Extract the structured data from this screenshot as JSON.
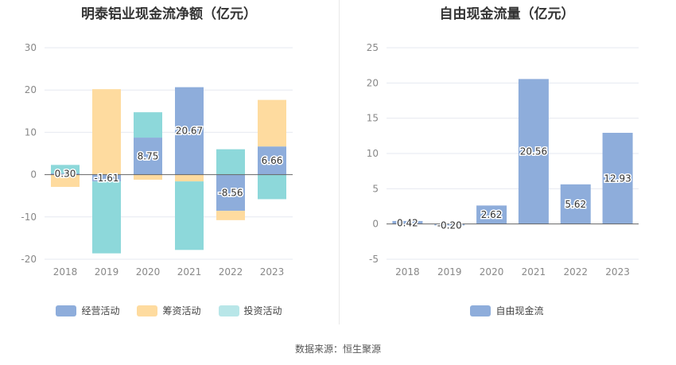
{
  "chart_data": [
    {
      "type": "bar",
      "stacked": true,
      "title": "明泰铝业现金流净额（亿元）",
      "categories": [
        "2018",
        "2019",
        "2020",
        "2021",
        "2022",
        "2023"
      ],
      "ylim": [
        -20,
        30
      ],
      "yticks": [
        "30",
        "20",
        "10",
        "0",
        "-10",
        "-20"
      ],
      "grid": true,
      "legend_position": "bottom",
      "series": [
        {
          "name": "经营活动",
          "color": "#8eaddb",
          "values": [
            0.3,
            -1.61,
            8.75,
            20.67,
            -8.56,
            6.66
          ],
          "labels": [
            "0.30",
            "-1.61",
            "8.75",
            "20.67",
            "-8.56",
            "6.66"
          ]
        },
        {
          "name": "筹资活动",
          "color": "#fedb9f",
          "values": [
            -2.9,
            20.2,
            -1.2,
            -1.6,
            -2.2,
            11.0
          ]
        },
        {
          "name": "投资活动",
          "color": "#8dd8da",
          "values": [
            2.0,
            -17.0,
            6.0,
            -16.2,
            6.0,
            -5.8
          ]
        }
      ]
    },
    {
      "type": "bar",
      "title": "自由现金流量（亿元）",
      "categories": [
        "2018",
        "2019",
        "2020",
        "2021",
        "2022",
        "2023"
      ],
      "ylim": [
        -5,
        25
      ],
      "yticks": [
        "25",
        "20",
        "15",
        "10",
        "5",
        "0",
        "-5"
      ],
      "grid": true,
      "legend_position": "bottom",
      "series": [
        {
          "name": "自由现金流",
          "color": "#8eaddb",
          "values": [
            0.42,
            -0.2,
            2.62,
            20.56,
            5.62,
            12.93
          ],
          "labels": [
            "0.42",
            "-0.20",
            "2.62",
            "20.56",
            "5.62",
            "12.93"
          ]
        }
      ]
    }
  ],
  "source_text": "数据来源：恒生聚源"
}
